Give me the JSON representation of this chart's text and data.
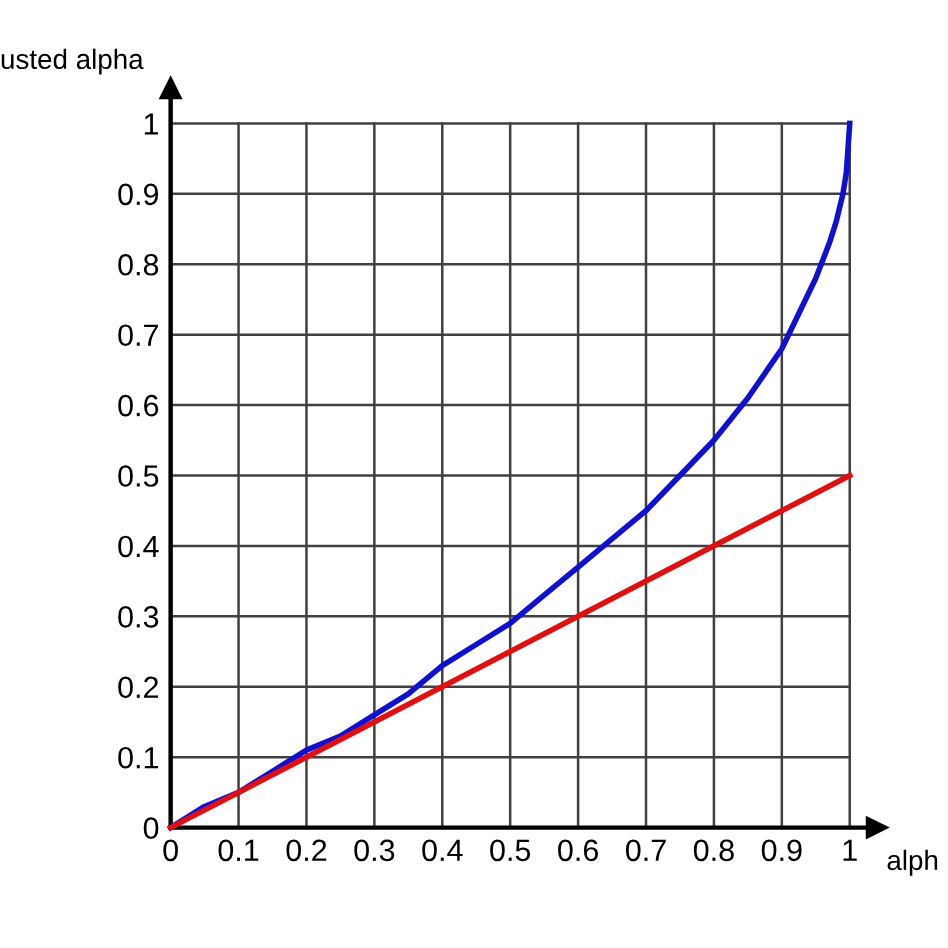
{
  "chart_data": {
    "type": "line",
    "xlabel": "alph",
    "ylabel": "usted alpha",
    "xlim": [
      0,
      1.04
    ],
    "ylim": [
      0,
      1.05
    ],
    "xticks": [
      0,
      0.1,
      0.2,
      0.3,
      0.4,
      0.5,
      0.6,
      0.7,
      0.8,
      0.9,
      1
    ],
    "yticks": [
      0,
      0.1,
      0.2,
      0.3,
      0.4,
      0.5,
      0.6,
      0.7,
      0.8,
      0.9,
      1
    ],
    "grid": true,
    "marker": "none",
    "line_style": "solid",
    "series": [
      {
        "color": "#1010d0",
        "x": [
          0,
          0.05,
          0.1,
          0.15,
          0.2,
          0.25,
          0.3,
          0.35,
          0.4,
          0.45,
          0.5,
          0.55,
          0.6,
          0.65,
          0.7,
          0.75,
          0.8,
          0.85,
          0.9,
          0.93,
          0.95,
          0.97,
          0.98,
          0.99,
          0.995,
          1
        ],
        "values": [
          0,
          0.03,
          0.05,
          0.08,
          0.11,
          0.13,
          0.16,
          0.19,
          0.23,
          0.26,
          0.29,
          0.33,
          0.37,
          0.41,
          0.45,
          0.5,
          0.55,
          0.61,
          0.68,
          0.74,
          0.78,
          0.83,
          0.86,
          0.9,
          0.93,
          1
        ]
      },
      {
        "color": "#e01010",
        "x": [
          0,
          1
        ],
        "values": [
          0,
          0.5
        ]
      }
    ]
  }
}
